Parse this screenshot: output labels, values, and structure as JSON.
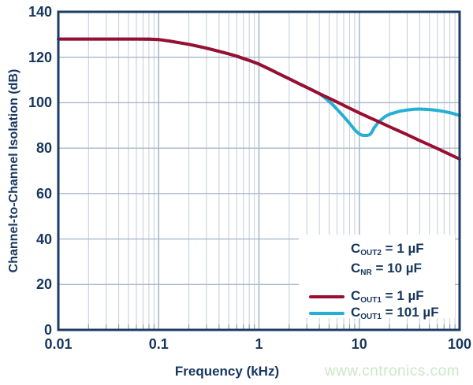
{
  "watermark": "www.cntronics.com",
  "chart_data": {
    "type": "line",
    "title": "",
    "xlabel": "Frequency (kHz)",
    "ylabel": "Channel-to-Channel Isolation (dB)",
    "x_scale": "log",
    "xlim": [
      0.01,
      100
    ],
    "ylim": [
      0,
      140
    ],
    "x_ticks": [
      0.01,
      0.1,
      1,
      10,
      100
    ],
    "x_tick_labels": [
      "0.01",
      "0.1",
      "1",
      "10",
      "100"
    ],
    "y_ticks": [
      0,
      20,
      40,
      60,
      80,
      100,
      120,
      140
    ],
    "grid": {
      "horizontal_major": true,
      "vertical_log_minor": true
    },
    "legend_position": "lower-right",
    "conditions": [
      {
        "base": "C",
        "sub": "OUT2",
        "rest": " = 1 µF"
      },
      {
        "base": "C",
        "sub": "NR",
        "rest": " = 10 µF"
      }
    ],
    "series": [
      {
        "name": "C_OUT1 = 1 µF",
        "legend": {
          "base": "C",
          "sub": "OUT1",
          "rest": " = 1 µF"
        },
        "color": "#9a0e31",
        "points": [
          [
            0.01,
            128
          ],
          [
            0.02,
            128
          ],
          [
            0.04,
            128
          ],
          [
            0.06,
            128
          ],
          [
            0.08,
            128
          ],
          [
            0.1,
            127.8
          ],
          [
            0.13,
            127.1
          ],
          [
            0.16,
            126.4
          ],
          [
            0.2,
            125.7
          ],
          [
            0.25,
            124.8
          ],
          [
            0.3,
            124
          ],
          [
            0.4,
            122.6
          ],
          [
            0.5,
            121.5
          ],
          [
            0.6,
            120.5
          ],
          [
            0.8,
            118.6
          ],
          [
            1,
            117
          ],
          [
            1.3,
            114.6
          ],
          [
            1.6,
            112.6
          ],
          [
            2,
            110.5
          ],
          [
            2.5,
            108.4
          ],
          [
            3,
            106.7
          ],
          [
            4,
            104
          ],
          [
            5,
            102
          ],
          [
            6,
            100.3
          ],
          [
            8,
            97.6
          ],
          [
            10,
            95.5
          ],
          [
            13,
            93.2
          ],
          [
            16,
            91.4
          ],
          [
            20,
            89.4
          ],
          [
            25,
            87.5
          ],
          [
            30,
            85.9
          ],
          [
            40,
            83.3
          ],
          [
            50,
            81.4
          ],
          [
            60,
            79.8
          ],
          [
            80,
            77.2
          ],
          [
            100,
            75.2
          ]
        ]
      },
      {
        "name": "C_OUT1 = 101 µF",
        "legend": {
          "base": "C",
          "sub": "OUT1",
          "rest": " = 101 µF"
        },
        "color": "#25b0d3",
        "points": [
          [
            0.01,
            128
          ],
          [
            0.03,
            128
          ],
          [
            0.06,
            128
          ],
          [
            0.1,
            127.8
          ],
          [
            0.2,
            125.7
          ],
          [
            0.3,
            124
          ],
          [
            0.5,
            121.5
          ],
          [
            0.8,
            118.6
          ],
          [
            1,
            117
          ],
          [
            1.5,
            113.2
          ],
          [
            2,
            110.5
          ],
          [
            2.5,
            108.4
          ],
          [
            3,
            106.7
          ],
          [
            3.5,
            105.3
          ],
          [
            4,
            104
          ],
          [
            4.5,
            102.3
          ],
          [
            5,
            100.6
          ],
          [
            5.5,
            98.9
          ],
          [
            6,
            97.1
          ],
          [
            7,
            93.9
          ],
          [
            8,
            90.9
          ],
          [
            9,
            88.1
          ],
          [
            9.5,
            87.1
          ],
          [
            10,
            86.3
          ],
          [
            10.5,
            85.8
          ],
          [
            11,
            85.6
          ],
          [
            12,
            85.6
          ],
          [
            12.5,
            85.8
          ],
          [
            13,
            86.3
          ],
          [
            13.5,
            87.4
          ],
          [
            14,
            88.8
          ],
          [
            15,
            90.6
          ],
          [
            16,
            92
          ],
          [
            18,
            93.8
          ],
          [
            20,
            94.9
          ],
          [
            25,
            96.2
          ],
          [
            30,
            96.8
          ],
          [
            35,
            97.1
          ],
          [
            40,
            97.2
          ],
          [
            50,
            97
          ],
          [
            60,
            96.6
          ],
          [
            70,
            96.1
          ],
          [
            80,
            95.6
          ],
          [
            90,
            95
          ],
          [
            100,
            94.4
          ]
        ]
      }
    ],
    "colors": {
      "axis_text": "#16365d",
      "plot_border": "#1c3d63",
      "grid_minor": "#c3cdd9",
      "grid_major": "#a9b8c9",
      "tick": "#7b8fa8",
      "watermark": "#cbe7c6",
      "legend_bg": "#ffffff"
    }
  }
}
